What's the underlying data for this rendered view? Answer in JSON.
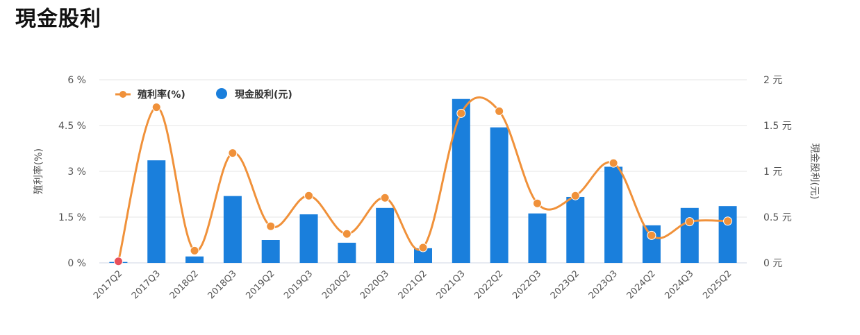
{
  "page": {
    "title": "現金股利"
  },
  "chart_data": {
    "type": "bar+line",
    "categories": [
      "2017Q2",
      "2017Q3",
      "2018Q2",
      "2018Q3",
      "2019Q2",
      "2019Q3",
      "2020Q2",
      "2020Q3",
      "2021Q2",
      "2021Q3",
      "2022Q2",
      "2022Q3",
      "2023Q2",
      "2023Q3",
      "2024Q2",
      "2024Q3",
      "2025Q2"
    ],
    "series": [
      {
        "name": "殖利率(%)",
        "type": "line",
        "axis": "left",
        "color": "#f0913a",
        "values": [
          0.05,
          5.1,
          0.4,
          3.6,
          1.2,
          2.2,
          0.95,
          2.13,
          0.5,
          4.9,
          4.97,
          1.95,
          2.2,
          3.27,
          0.9,
          1.35,
          1.37
        ],
        "highlight_point_color": "#e8505b"
      },
      {
        "name": "現金股利(元)",
        "type": "bar",
        "axis": "right",
        "color": "#1a7fdc",
        "values": [
          0.01,
          1.12,
          0.07,
          0.73,
          0.25,
          0.53,
          0.22,
          0.6,
          0.16,
          1.79,
          1.48,
          0.54,
          0.72,
          1.05,
          0.41,
          0.6,
          0.62
        ]
      }
    ],
    "y_left": {
      "label": "殖利率(%)",
      "ticks": [
        "0 %",
        "1.5 %",
        "3 %",
        "4.5 %",
        "6 %"
      ],
      "range": [
        0,
        6
      ]
    },
    "y_right": {
      "label": "現金股利(元)",
      "ticks": [
        "0 元",
        "0.5 元",
        "1 元",
        "1.5 元",
        "2 元"
      ],
      "range": [
        0,
        2
      ]
    },
    "grid": true,
    "legend_position": "top-left"
  }
}
